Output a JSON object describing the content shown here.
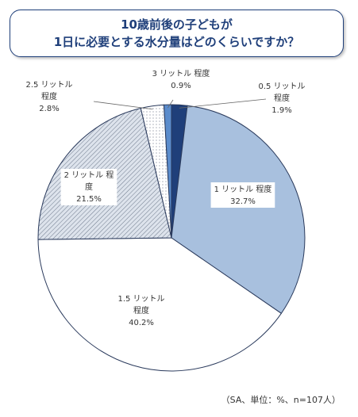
{
  "title": {
    "line1": "10歳前後の子どもが",
    "line2": "1日に必要とする水分量はどのくらいですか？"
  },
  "note": "（SA、単位：%、n=107人）",
  "chart_data": {
    "type": "pie",
    "start": "12 o'clock",
    "direction": "clockwise",
    "slices": [
      {
        "label_lines": [
          "0.5 リットル",
          "程度"
        ],
        "value_text": "1.9%",
        "value": 1.9,
        "color": "#1f3f7a",
        "pattern": "solid"
      },
      {
        "label_lines": [
          "1 リットル 程度"
        ],
        "value_text": "32.7%",
        "value": 32.7,
        "color": "#a8c0de",
        "pattern": "solid"
      },
      {
        "label_lines": [
          "1.5 リットル",
          "程度"
        ],
        "value_text": "40.2%",
        "value": 40.2,
        "color": "#ffffff",
        "pattern": "solid"
      },
      {
        "label_lines": [
          "2 リットル 程",
          "度"
        ],
        "value_text": "21.5%",
        "value": 21.5,
        "color": "#dde3ec",
        "pattern": "diagonal-hatch"
      },
      {
        "label_lines": [
          "2.5 リットル",
          "程度"
        ],
        "value_text": "2.8%",
        "value": 2.8,
        "color": "#ffffff",
        "pattern": "dots"
      },
      {
        "label_lines": [
          "3 リットル 程度"
        ],
        "value_text": "0.9%",
        "value": 0.9,
        "color": "#5b8ccc",
        "pattern": "solid"
      }
    ],
    "legend": "none (labels on slices / leader lines)"
  }
}
